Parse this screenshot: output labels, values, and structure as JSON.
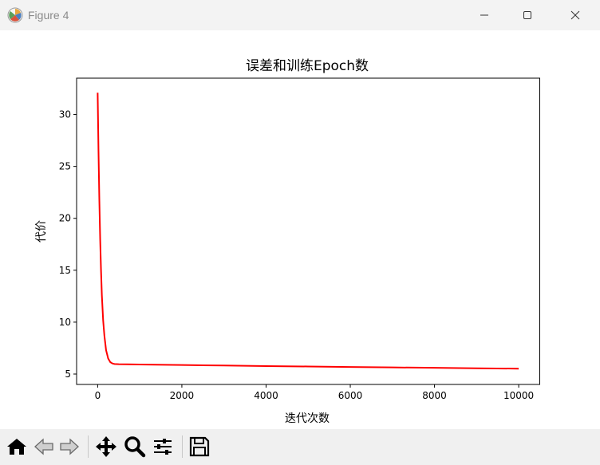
{
  "window": {
    "title": "Figure 4",
    "controls": {
      "minimize": "minimize",
      "maximize": "maximize",
      "close": "close"
    }
  },
  "toolbar": {
    "items": [
      "home",
      "back",
      "forward",
      "pan",
      "zoom",
      "configure-subplots",
      "save"
    ]
  },
  "chart_data": {
    "type": "line",
    "title": "误差和训练Epoch数",
    "xlabel": "迭代次数",
    "ylabel": "代价",
    "xlim": [
      -500,
      10500
    ],
    "ylim": [
      4.0,
      33.5
    ],
    "xticks": [
      0,
      2000,
      4000,
      6000,
      8000,
      10000
    ],
    "yticks": [
      5,
      10,
      15,
      20,
      25,
      30
    ],
    "grid": false,
    "legend": "none",
    "series": [
      {
        "color": "#ff0000",
        "x": [
          0,
          20,
          40,
          60,
          80,
          100,
          130,
          160,
          200,
          250,
          300,
          350,
          400,
          500,
          700,
          1000,
          2000,
          3000,
          4000,
          5000,
          6000,
          7000,
          8000,
          9000,
          10000
        ],
        "y": [
          32.1,
          26.5,
          21.8,
          18.0,
          15.0,
          12.6,
          10.2,
          8.7,
          7.3,
          6.5,
          6.15,
          6.02,
          5.97,
          5.95,
          5.94,
          5.92,
          5.87,
          5.82,
          5.77,
          5.73,
          5.68,
          5.64,
          5.6,
          5.56,
          5.52
        ]
      }
    ]
  }
}
